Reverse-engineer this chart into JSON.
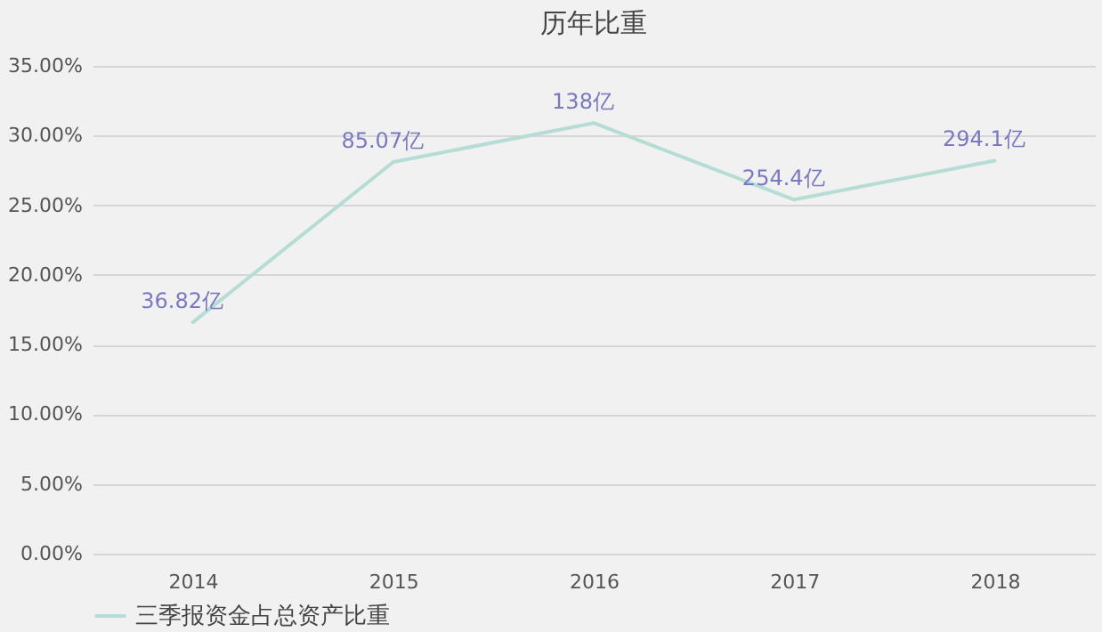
{
  "chart_data": {
    "type": "line",
    "title": "历年比重",
    "categories": [
      "2014",
      "2015",
      "2016",
      "2017",
      "2018"
    ],
    "series": [
      {
        "name": "三季报资金占总资产比重",
        "color": "#b5ddd5",
        "values": [
          16.6,
          28.1,
          30.9,
          25.4,
          28.2
        ]
      }
    ],
    "annotations": [
      {
        "text": "36.82亿",
        "x": "2014",
        "y": 16.6
      },
      {
        "text": "85.07亿",
        "x": "2015",
        "y": 28.1
      },
      {
        "text": "138亿",
        "x": "2016",
        "y": 30.9
      },
      {
        "text": "254.4亿",
        "x": "2017",
        "y": 25.4
      },
      {
        "text": "294.1亿",
        "x": "2018",
        "y": 28.2
      }
    ],
    "ylim": [
      0,
      35
    ],
    "yticks": [
      {
        "value": 0,
        "label": "0.00%"
      },
      {
        "value": 5,
        "label": "5.00%"
      },
      {
        "value": 10,
        "label": "10.00%"
      },
      {
        "value": 15,
        "label": "15.00%"
      },
      {
        "value": 20,
        "label": "20.00%"
      },
      {
        "value": 25,
        "label": "25.00%"
      },
      {
        "value": 30,
        "label": "30.00%"
      },
      {
        "value": 35,
        "label": "35.00%"
      }
    ],
    "grid": "y",
    "legend": "bottom",
    "marker": "none",
    "line_style": "solid"
  }
}
